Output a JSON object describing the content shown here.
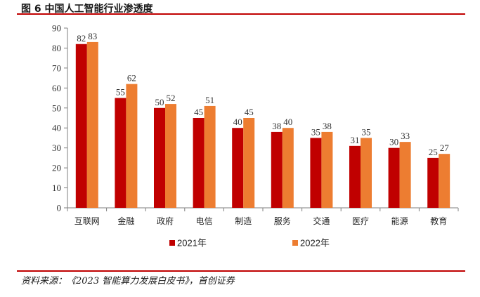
{
  "header": {
    "title": "图 6 中国人工智能行业渗透度"
  },
  "footer": {
    "source": "资料来源：《2023 智能算力发展白皮书》，首创证券"
  },
  "colors": {
    "s2021": "#c00000",
    "s2022": "#ed7d31",
    "rule": "#c00000",
    "axis": "#7f7f7f"
  },
  "chart_data": {
    "type": "bar",
    "title": "中国人工智能行业渗透度",
    "categories": [
      "互联网",
      "金融",
      "政府",
      "电信",
      "制造",
      "服务",
      "交通",
      "医疗",
      "能源",
      "教育"
    ],
    "series": [
      {
        "name": "2021年",
        "values": [
          82,
          55,
          50,
          45,
          40,
          38,
          35,
          31,
          30,
          25
        ]
      },
      {
        "name": "2022年",
        "values": [
          83,
          62,
          52,
          51,
          45,
          40,
          38,
          35,
          33,
          27
        ]
      }
    ],
    "yticks": [
      0,
      10,
      20,
      30,
      40,
      50,
      60,
      70,
      80,
      90
    ],
    "ylim": [
      0,
      90
    ],
    "xlabel": "",
    "ylabel": "",
    "legend": "bottom-center"
  }
}
